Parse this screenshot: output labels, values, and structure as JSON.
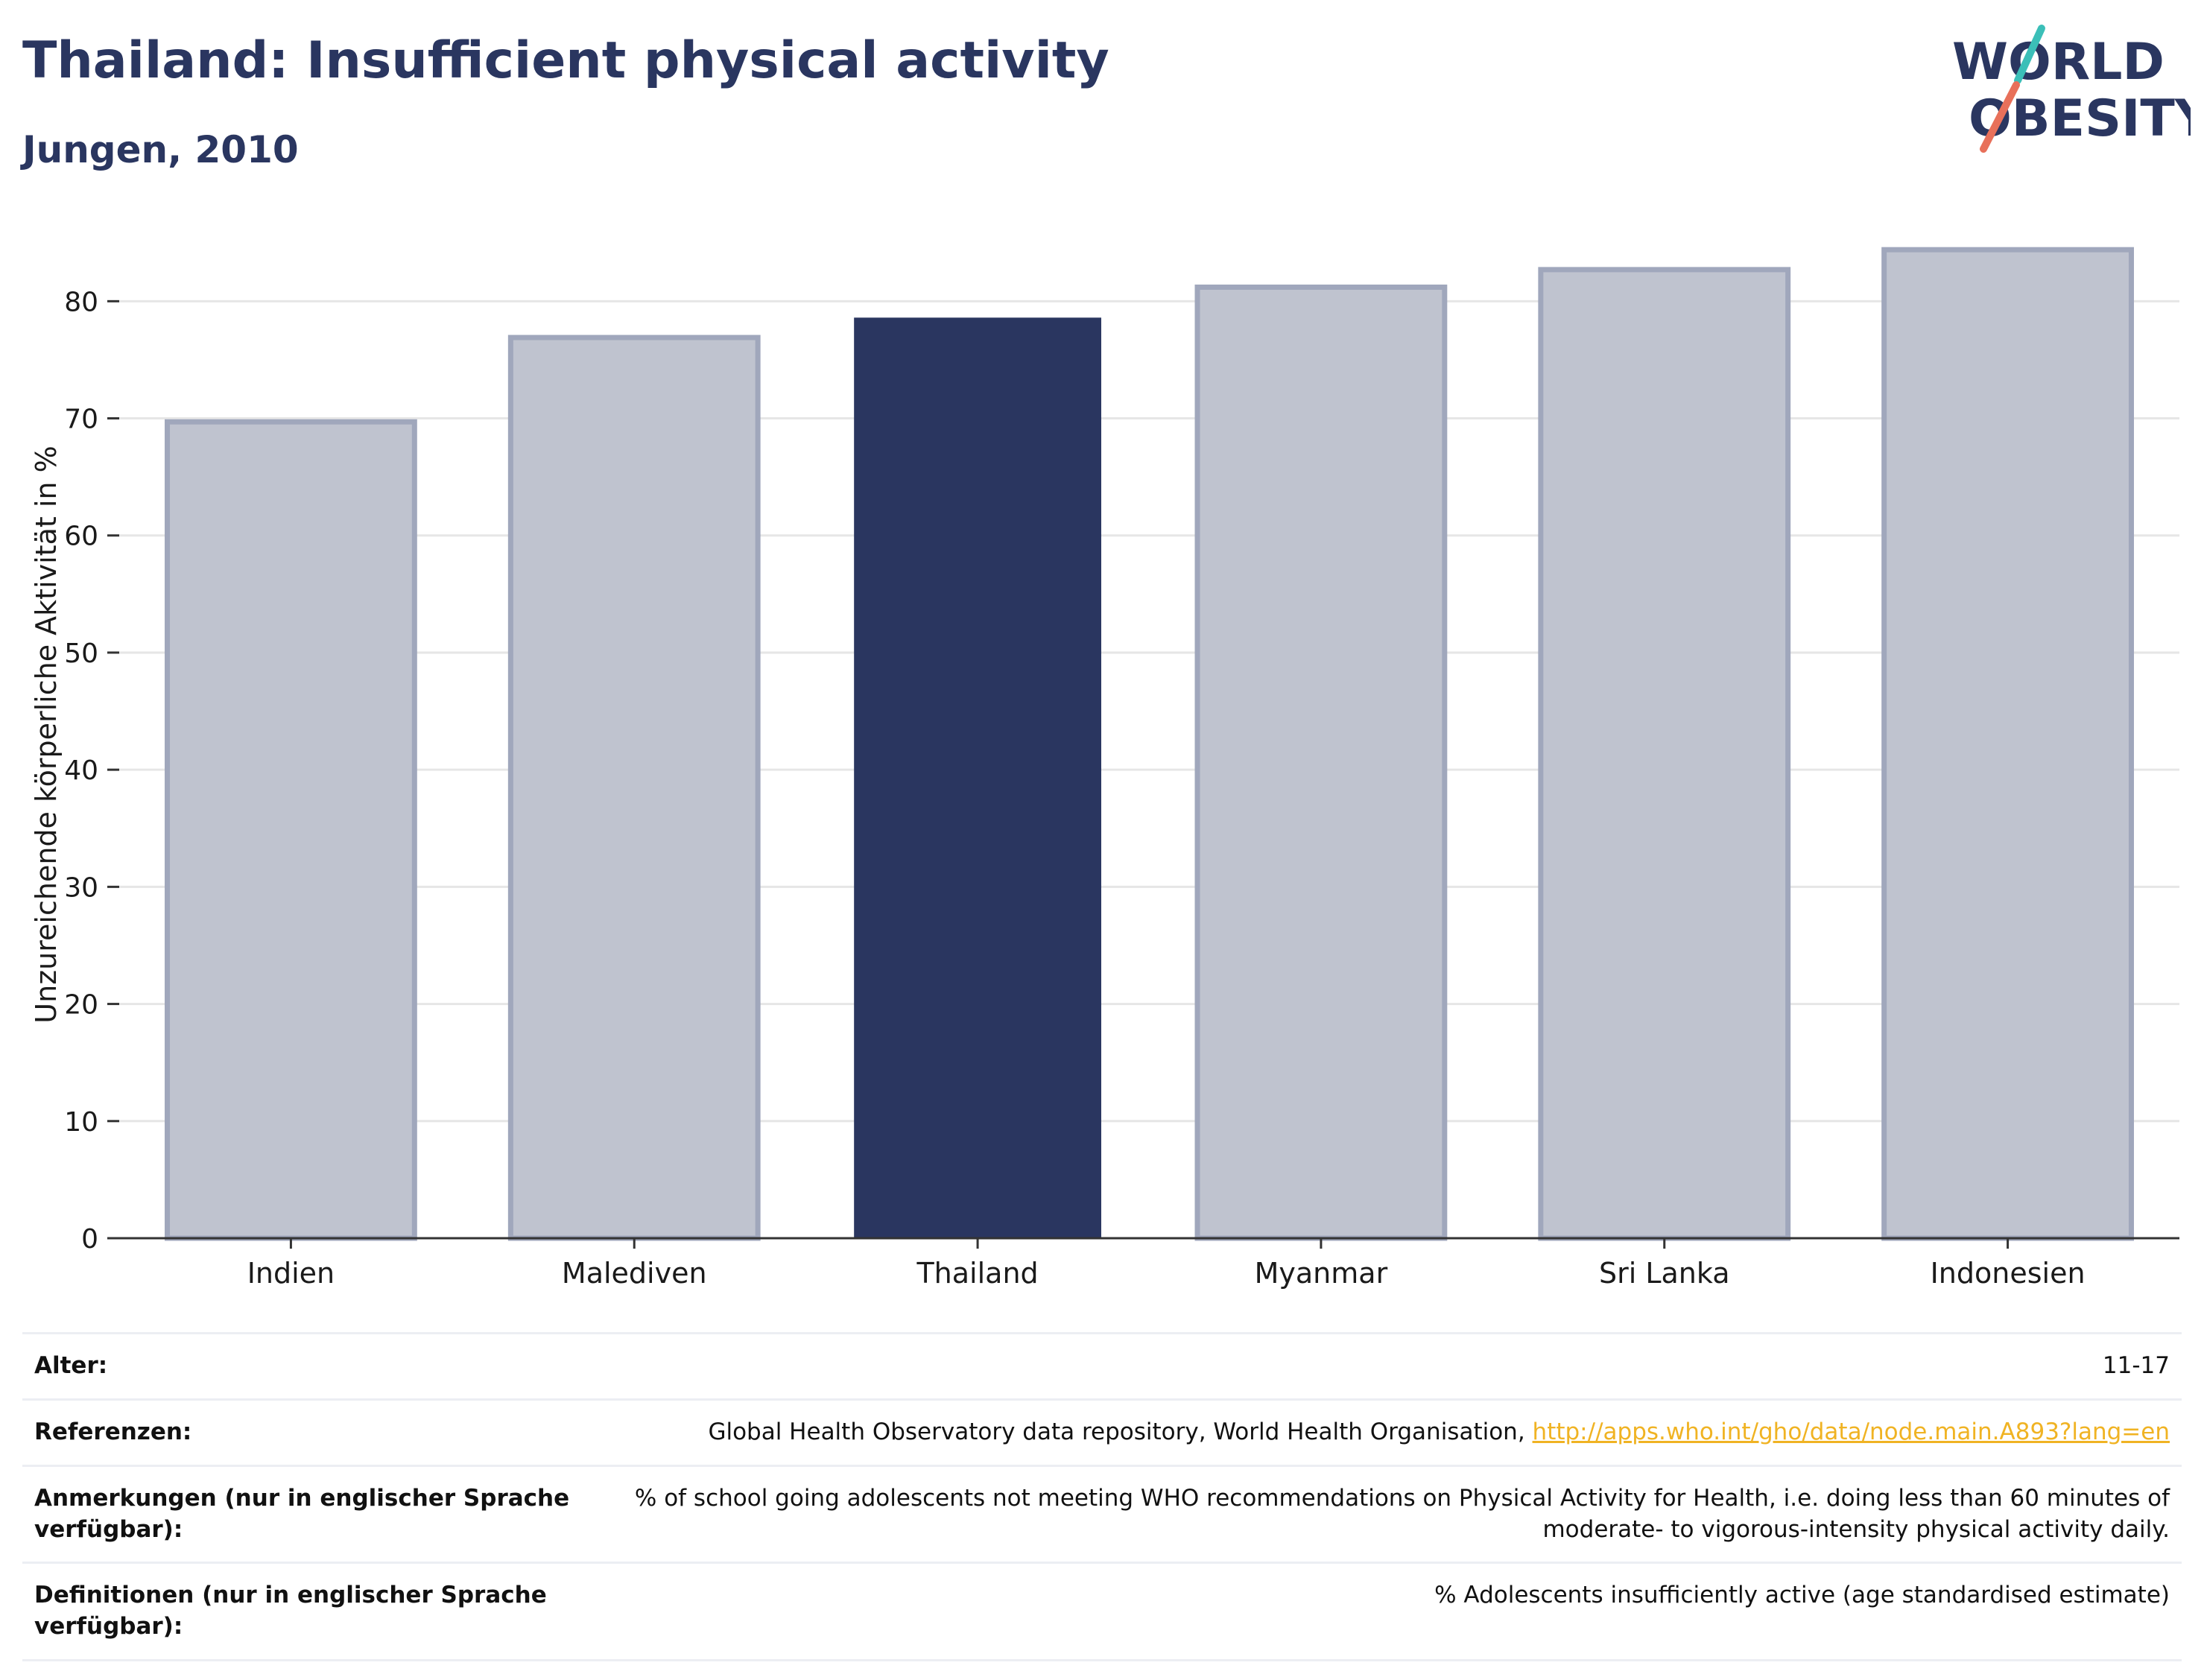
{
  "header": {
    "title": "Thailand: Insufficient physical activity",
    "subtitle": "Jungen, 2010"
  },
  "logo": {
    "line1": "WORLD",
    "line2": "OBESITY",
    "text_color": "#2a3660",
    "slash_top_color": "#3bbfb8",
    "slash_bottom_color": "#e8705a"
  },
  "chart_data": {
    "type": "bar",
    "categories": [
      "Indien",
      "Malediven",
      "Thailand",
      "Myanmar",
      "Sri Lanka",
      "Indonesien"
    ],
    "values": [
      69.7,
      76.9,
      78.6,
      81.2,
      82.7,
      84.4
    ],
    "highlight": "Thailand",
    "title": "Thailand: Insufficient physical activity",
    "subtitle": "Jungen, 2010",
    "xlabel": "",
    "ylabel": "Unzureichende körperliche Aktivität in %",
    "ylim": [
      0,
      86
    ],
    "yticks": [
      0,
      10,
      20,
      30,
      40,
      50,
      60,
      70,
      80
    ],
    "grid": true,
    "colors": {
      "highlight_fill": "#2a3660",
      "bar_fill": "#bfc3cf",
      "bar_stroke": "#a0a7bc",
      "gridline": "#e6e6e6"
    }
  },
  "info_table": [
    {
      "label": "Alter:",
      "value": "11-17"
    },
    {
      "label": "Referenzen:",
      "value": "Global Health Observatory data repository, World Health Organisation, ",
      "link": "http://apps.who.int/gho/data/node.main.A893?lang=en"
    },
    {
      "label": "Anmerkungen (nur in englischer Sprache verfügbar):",
      "value": "% of school going adolescents not meeting WHO recommendations on Physical Activity for Health, i.e. doing less than 60 minutes of moderate- to vigorous-intensity physical activity daily."
    },
    {
      "label": "Definitionen (nur in englischer Sprache verfügbar):",
      "value": "% Adolescents insufficiently active (age standardised estimate)"
    }
  ]
}
